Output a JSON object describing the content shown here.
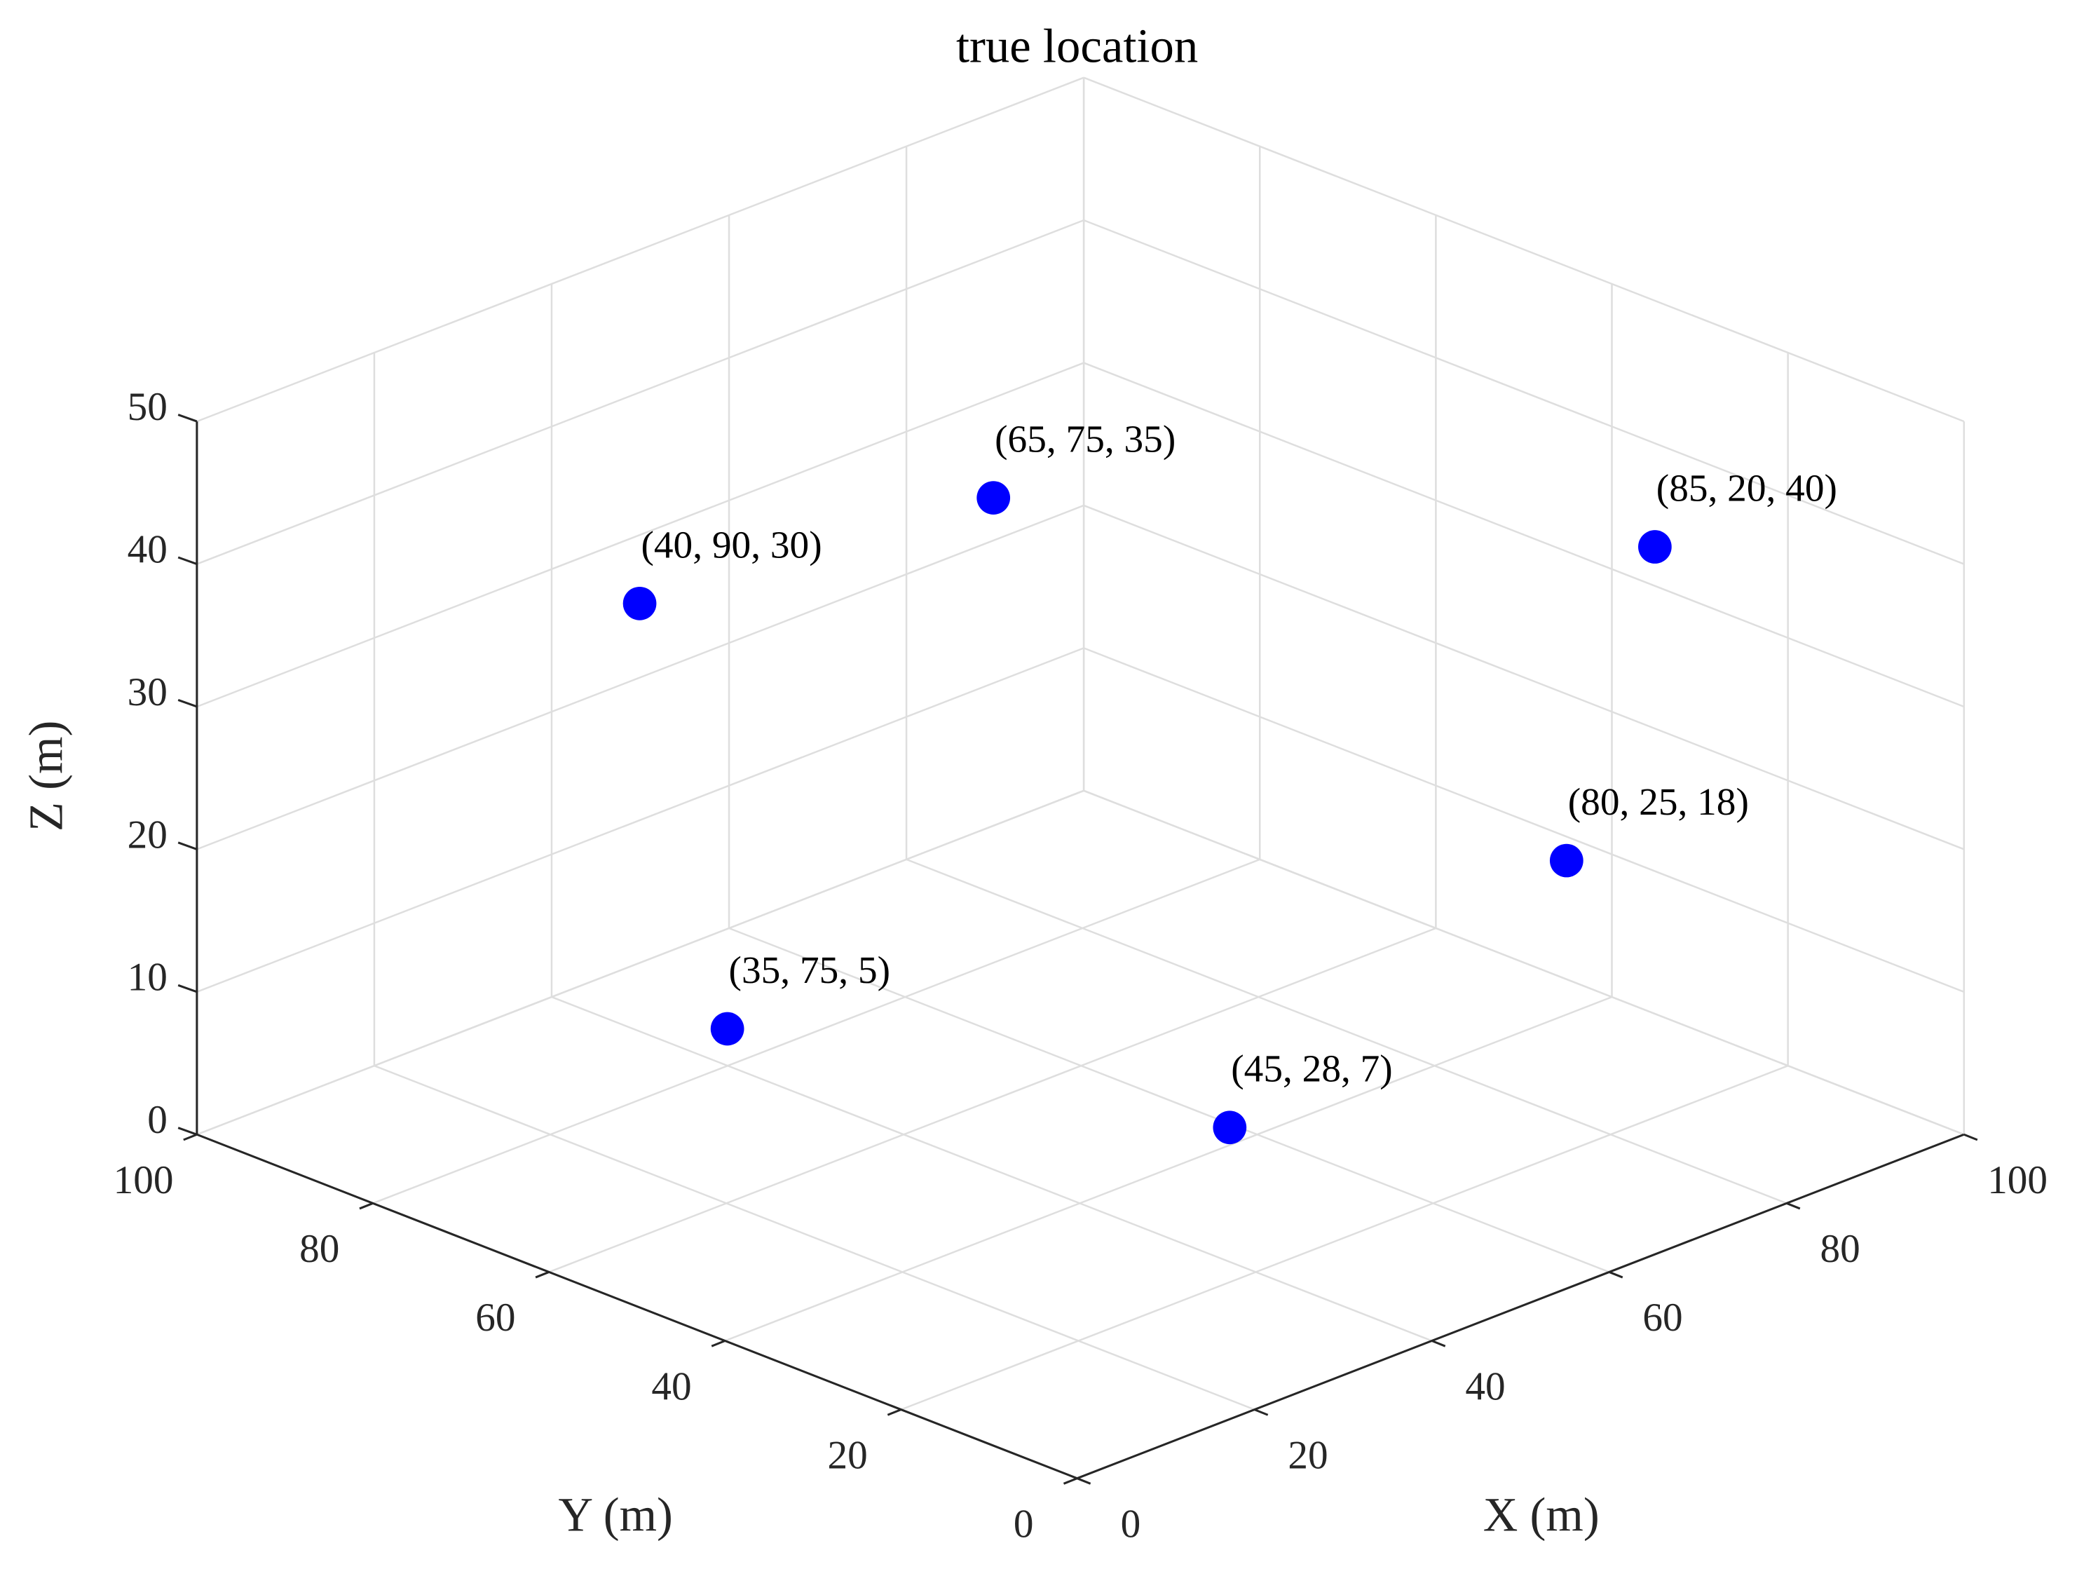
{
  "chart_data": {
    "type": "scatter3d",
    "title": "true location",
    "x_label": "X (m)",
    "y_label": "Y (m)",
    "z_label": "Z (m)",
    "x": [
      65,
      40,
      85,
      80,
      35,
      45
    ],
    "y": [
      75,
      90,
      20,
      25,
      75,
      28
    ],
    "z": [
      35,
      30,
      40,
      18,
      5,
      7
    ],
    "value_labels": [
      "(65, 75, 35)",
      "(40, 90, 30)",
      "(85, 20, 40)",
      "(80, 25, 18)",
      "(35, 75, 5)",
      "(45, 28, 7)"
    ],
    "color": "#0000ff",
    "xlim": [
      0,
      100
    ],
    "ylim": [
      0,
      100
    ],
    "zlim": [
      0,
      50
    ],
    "xticks": [
      0,
      20,
      40,
      60,
      80,
      100
    ],
    "yticks": [
      0,
      20,
      40,
      60,
      80,
      100
    ],
    "zticks": [
      0,
      10,
      20,
      30,
      40,
      50
    ],
    "grid": true
  }
}
